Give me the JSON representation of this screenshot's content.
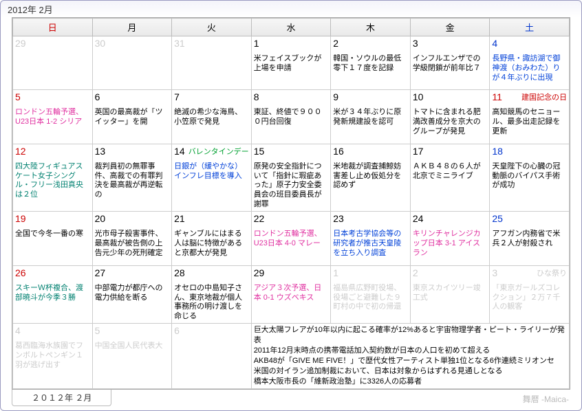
{
  "title": "2012年 2月",
  "tab": "２０１２年 ２月",
  "credit": "舞暦 -Maica-",
  "dow": [
    "日",
    "月",
    "火",
    "水",
    "木",
    "金",
    "土"
  ],
  "colors": {
    "sun": "#cc0000",
    "sat": "#0033cc",
    "pink": "#e030a0",
    "blue": "#0040d8",
    "green": "#00a030",
    "teal": "#008070",
    "grey": "#cccccc"
  },
  "cells": [
    [
      {
        "n": "29",
        "cls": "prev sun",
        "ev": []
      },
      {
        "n": "30",
        "cls": "prev",
        "ev": []
      },
      {
        "n": "31",
        "cls": "prev",
        "ev": []
      },
      {
        "n": "1",
        "cls": "",
        "ev": [
          {
            "t": "米フェイスブックが上場を申請",
            "c": "black"
          }
        ]
      },
      {
        "n": "2",
        "cls": "",
        "ev": [
          {
            "t": "韓国・ソウルの最低零下１７度を記録",
            "c": "black"
          }
        ]
      },
      {
        "n": "3",
        "cls": "",
        "ev": [
          {
            "t": "インフルエンザでの学級閉鎖が前年比７",
            "c": "black"
          }
        ]
      },
      {
        "n": "4",
        "cls": "sat",
        "ev": [
          {
            "t": "長野県・諏訪湖で御神渡（おみわた）りが４年ぶりに出現",
            "c": "blue"
          }
        ]
      }
    ],
    [
      {
        "n": "5",
        "cls": "sun",
        "ev": [
          {
            "t": "ロンドン五輪予選、U23日本 1-2 シリア",
            "c": "pink"
          }
        ]
      },
      {
        "n": "6",
        "cls": "",
        "ev": [
          {
            "t": "英国の最高裁が「ツイッター」を開",
            "c": "black"
          }
        ]
      },
      {
        "n": "7",
        "cls": "",
        "ev": [
          {
            "t": "絶滅の希少な海鳥、小笠原で発見",
            "c": "black"
          }
        ]
      },
      {
        "n": "8",
        "cls": "",
        "ev": [
          {
            "t": "東証、終値で９０００円台回復",
            "c": "black"
          }
        ]
      },
      {
        "n": "9",
        "cls": "",
        "ev": [
          {
            "t": "米が３４年ぶりに原発新規建設を認可",
            "c": "black"
          }
        ]
      },
      {
        "n": "10",
        "cls": "",
        "ev": [
          {
            "t": "トマトに含まれる肥満改善成分を京大のグループが発見",
            "c": "black"
          }
        ]
      },
      {
        "n": "11",
        "cls": "sat hol",
        "hol": "建国記念の日",
        "ev": [
          {
            "t": "高知競馬のセニョール、最多出走記録を更新",
            "c": "black"
          }
        ]
      }
    ],
    [
      {
        "n": "12",
        "cls": "sun",
        "ev": [
          {
            "t": "四大陸フィギュアスケート女子シングル・フリー浅田真央は２位",
            "c": "teal"
          }
        ]
      },
      {
        "n": "13",
        "cls": "",
        "ev": [
          {
            "t": "裁判員初の無罪事件、高裁での有罪判決を最高裁が再逆転の",
            "c": "black"
          }
        ]
      },
      {
        "n": "14",
        "cls": "",
        "hol2": "バレンタインデー",
        "ev": [
          {
            "t": "日銀が（緩やかな）インフレ目標を導入",
            "c": "blue"
          }
        ]
      },
      {
        "n": "15",
        "cls": "",
        "ev": [
          {
            "t": "原発の安全指針について「指針に瑕疵あった」原子力安全委員会の班目委員長が謝罪",
            "c": "black"
          }
        ]
      },
      {
        "n": "16",
        "cls": "",
        "ev": [
          {
            "t": "米地裁が調査捕鯨妨害差し止め仮処分を認めず",
            "c": "black"
          }
        ]
      },
      {
        "n": "17",
        "cls": "",
        "ev": [
          {
            "t": "ＡＫＢ４８の６人が北京でミニライブ",
            "c": "black"
          }
        ]
      },
      {
        "n": "18",
        "cls": "sat",
        "ev": [
          {
            "t": "天皇陛下の心臓の冠動脈のバイパス手術が成功",
            "c": "black"
          }
        ]
      }
    ],
    [
      {
        "n": "19",
        "cls": "sun",
        "ev": [
          {
            "t": "全国で今冬一番の寒",
            "c": "black"
          }
        ]
      },
      {
        "n": "20",
        "cls": "",
        "ev": [
          {
            "t": "光市母子殺害事件、最高裁が被告側の上告元少年の死刑確定",
            "c": "black"
          }
        ]
      },
      {
        "n": "21",
        "cls": "",
        "ev": [
          {
            "t": "ギャンブルにはまる人は脳に特徴があると京都大が発見",
            "c": "black"
          }
        ]
      },
      {
        "n": "22",
        "cls": "",
        "ev": [
          {
            "t": "ロンドン五輪予選、U23日本 4-0 マレー",
            "c": "pink"
          }
        ]
      },
      {
        "n": "23",
        "cls": "",
        "ev": [
          {
            "t": "日本考古学協会等の研究者が推古天皇陵を立ち入り調査",
            "c": "blue"
          }
        ]
      },
      {
        "n": "24",
        "cls": "",
        "ev": [
          {
            "t": "キリンチャレンジカップ日本 3-1 アイスラン",
            "c": "pink"
          }
        ]
      },
      {
        "n": "25",
        "cls": "sat",
        "ev": [
          {
            "t": "アフガン内務省で米兵２人が射殺され",
            "c": "black"
          }
        ]
      }
    ],
    [
      {
        "n": "26",
        "cls": "sun",
        "ev": [
          {
            "t": "スキーＷ杯複合、渡部暁斗が今季３勝",
            "c": "teal"
          }
        ]
      },
      {
        "n": "27",
        "cls": "",
        "ev": [
          {
            "t": "中部電力が都庁への電力供給を断る",
            "c": "black"
          }
        ]
      },
      {
        "n": "28",
        "cls": "",
        "ev": [
          {
            "t": "オセロの中島知子さん、東京地裁が個人事務所の明け渡しを命じる",
            "c": "black"
          }
        ]
      },
      {
        "n": "29",
        "cls": "",
        "ev": [
          {
            "t": "アジア３次予選、日本 0-1 ウズベキス",
            "c": "pink"
          }
        ]
      },
      {
        "n": "1",
        "cls": "next",
        "ev": [
          {
            "t": "福島県広野町役場、役場ごと避難した９町村の中で初の帰還",
            "c": "grey"
          }
        ]
      },
      {
        "n": "2",
        "cls": "next",
        "ev": [
          {
            "t": "東京スカイツリー竣工式",
            "c": "grey"
          }
        ]
      },
      {
        "n": "3",
        "cls": "next",
        "hol": "ひな祭り",
        "ev": [
          {
            "t": "「東京ガールズコレクション」２万７千人の観客",
            "c": "grey"
          }
        ]
      }
    ],
    [
      {
        "n": "4",
        "cls": "next sun",
        "ev": [
          {
            "t": "葛西臨海水族園でフンボルトペンギン１羽が逃げ出す",
            "c": "grey"
          }
        ]
      },
      {
        "n": "5",
        "cls": "next",
        "ev": [
          {
            "t": "中国全国人民代表大",
            "c": "grey"
          }
        ]
      },
      {
        "n": "6",
        "cls": "next",
        "ev": []
      }
    ]
  ],
  "notes": [
    "巨大太陽フレアが10年以内に起こる確率が12%あると宇宙物理学者・ピート・ライリーが発表",
    "2011年12月末時点の携帯電話加入契約数が日本の人口を初めて超える",
    "AKB48が「GIVE ME FIVE！」で歴代女性アーティスト単独1位となる6作連続ミリオンセ",
    "米国の対イラン追加制裁において、日本は対象からはずれる見通しとなる",
    "橋本大阪市長の「維新政治塾」に3326人の応募者"
  ]
}
